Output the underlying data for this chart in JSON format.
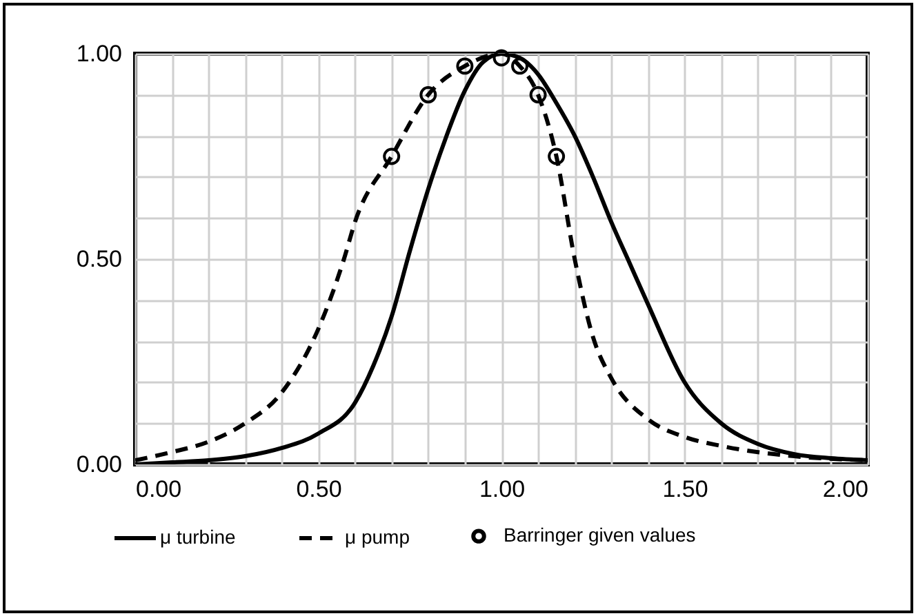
{
  "chart_data": {
    "type": "line",
    "xlim": [
      0,
      2
    ],
    "ylim": [
      0,
      1
    ],
    "xticks": [
      {
        "value": 0,
        "label": "0.00"
      },
      {
        "value": 0.1,
        "label": null
      },
      {
        "value": 0.2,
        "label": null
      },
      {
        "value": 0.3,
        "label": null
      },
      {
        "value": 0.4,
        "label": null
      },
      {
        "value": 0.5,
        "label": "0.50"
      },
      {
        "value": 0.6,
        "label": null
      },
      {
        "value": 0.7,
        "label": null
      },
      {
        "value": 0.8,
        "label": null
      },
      {
        "value": 0.9,
        "label": null
      },
      {
        "value": 1,
        "label": "1.00"
      },
      {
        "value": 1.1,
        "label": null
      },
      {
        "value": 1.2,
        "label": null
      },
      {
        "value": 1.3,
        "label": null
      },
      {
        "value": 1.4,
        "label": null
      },
      {
        "value": 1.5,
        "label": "1.50"
      },
      {
        "value": 1.6,
        "label": null
      },
      {
        "value": 1.7,
        "label": null
      },
      {
        "value": 1.8,
        "label": null
      },
      {
        "value": 1.9,
        "label": null
      },
      {
        "value": 2,
        "label": "2.00"
      }
    ],
    "yticks": [
      {
        "value": 0,
        "label": "0.00"
      },
      {
        "value": 0.1,
        "label": null
      },
      {
        "value": 0.2,
        "label": null
      },
      {
        "value": 0.3,
        "label": null
      },
      {
        "value": 0.4,
        "label": null
      },
      {
        "value": 0.5,
        "label": "0.50"
      },
      {
        "value": 0.6,
        "label": null
      },
      {
        "value": 0.7,
        "label": null
      },
      {
        "value": 0.8,
        "label": null
      },
      {
        "value": 0.9,
        "label": null
      },
      {
        "value": 1,
        "label": "1.00"
      }
    ],
    "grid": true,
    "legend": "bottom",
    "series": [
      {
        "name": "μ turbine",
        "line_style": "solid",
        "color": "#000000",
        "x": [
          0,
          0.1,
          0.2,
          0.3,
          0.4,
          0.5,
          0.6,
          0.65,
          0.7,
          0.75,
          0.8,
          0.85,
          0.9,
          0.95,
          1,
          1.05,
          1.1,
          1.15,
          1.2,
          1.25,
          1.3,
          1.35,
          1.4,
          1.5,
          1.6,
          1.7,
          1.8,
          1.9,
          2
        ],
        "values": [
          0,
          0.005,
          0.01,
          0.02,
          0.04,
          0.075,
          0.15,
          0.24,
          0.36,
          0.52,
          0.67,
          0.8,
          0.91,
          0.98,
          1,
          0.99,
          0.95,
          0.88,
          0.8,
          0.7,
          0.59,
          0.49,
          0.39,
          0.2,
          0.1,
          0.05,
          0.025,
          0.015,
          0.01
        ]
      },
      {
        "name": "μ pump",
        "line_style": "dashed",
        "color": "#000000",
        "x": [
          0,
          0.1,
          0.2,
          0.3,
          0.4,
          0.5,
          0.57,
          0.6,
          0.7,
          0.8,
          0.9,
          1,
          1.05,
          1.1,
          1.15,
          1.2,
          1.25,
          1.3,
          1.4,
          1.5,
          1.6,
          1.8,
          2
        ],
        "values": [
          0.01,
          0.03,
          0.055,
          0.1,
          0.175,
          0.33,
          0.5,
          0.59,
          0.75,
          0.9,
          0.97,
          1,
          0.97,
          0.9,
          0.75,
          0.5,
          0.31,
          0.21,
          0.11,
          0.067,
          0.045,
          0.02,
          0.01
        ]
      },
      {
        "name": "Barringer given values",
        "type": "scatter",
        "marker": "circle",
        "color": "#000000",
        "x": [
          0.7,
          0.8,
          0.9,
          1,
          1.05,
          1.1,
          1.15
        ],
        "values": [
          0.75,
          0.9,
          0.97,
          0.99,
          0.97,
          0.9,
          0.75
        ]
      }
    ]
  }
}
